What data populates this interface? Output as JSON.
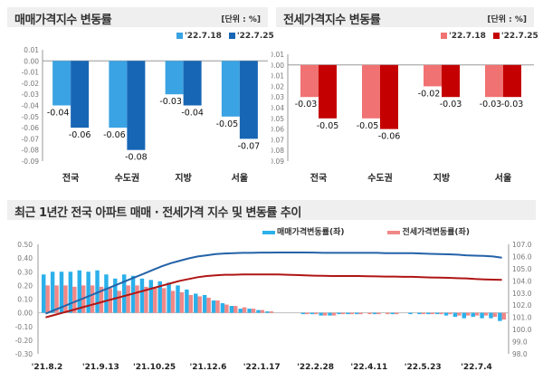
{
  "chart_data": [
    {
      "type": "bar",
      "title": "매매가격지수 변동률",
      "unit": "[단위 : %]",
      "categories": [
        "전국",
        "수도권",
        "지방",
        "서울"
      ],
      "series": [
        {
          "name": "'22.7.18",
          "values": [
            -0.04,
            -0.06,
            -0.03,
            -0.05
          ],
          "color": "#3aa3e3"
        },
        {
          "name": "'22.7.25",
          "values": [
            -0.06,
            -0.08,
            -0.04,
            -0.07
          ],
          "color": "#1766b5"
        }
      ],
      "ylim": [
        -0.09,
        0.01
      ],
      "yticks": [
        "0.01",
        "0.00",
        "-0.01",
        "-0.02",
        "-0.03",
        "-0.04",
        "-0.05",
        "-0.06",
        "-0.07",
        "-0.08",
        "-0.09"
      ],
      "legend": "top-right"
    },
    {
      "type": "bar",
      "title": "전세가격지수 변동률",
      "unit": "[단위 : %]",
      "categories": [
        "전국",
        "수도권",
        "지방",
        "서울"
      ],
      "series": [
        {
          "name": "'22.7.18",
          "values": [
            -0.03,
            -0.05,
            -0.02,
            -0.03
          ],
          "color": "#f07272"
        },
        {
          "name": "'22.7.25",
          "values": [
            -0.05,
            -0.06,
            -0.03,
            -0.03
          ],
          "color": "#c40000"
        }
      ],
      "ylim": [
        -0.09,
        0.01
      ],
      "yticks": [
        "0.01",
        "0.00",
        "-0.01",
        "-0.02",
        "-0.03",
        "-0.04",
        "-0.05",
        "-0.06",
        "-0.07",
        "-0.08",
        "-0.09"
      ],
      "legend": "top-right"
    },
    {
      "type": "bar+line",
      "title": "최근 1년간 전국 아파트 매매 · 전세가격 지수 및 변동률 추이",
      "xticks": [
        "'21.8.2",
        "'21.9.13",
        "'21.10.25",
        "'21.12.6",
        "'22.1.17",
        "'22.2.28",
        "'22.4.11",
        "'22.5.23",
        "'22.7.4"
      ],
      "ylim": [
        -0.3,
        0.5
      ],
      "yticks": [
        "0.50",
        "0.40",
        "0.30",
        "0.20",
        "0.10",
        "0.00",
        "-0.10",
        "-0.20",
        "-0.30"
      ],
      "y2lim": [
        98.0,
        107.0
      ],
      "y2ticks": [
        "107.0",
        "106.0",
        "105.0",
        "104.0",
        "103.0",
        "102.0",
        "101.0",
        "100.0",
        "99.0",
        "98.0"
      ],
      "bar_series": [
        {
          "name": "매매가격변동률(좌)",
          "color": "#2bb0ea",
          "values": [
            0.28,
            0.3,
            0.3,
            0.3,
            0.31,
            0.3,
            0.31,
            0.28,
            0.25,
            0.28,
            0.27,
            0.25,
            0.24,
            0.23,
            0.22,
            0.2,
            0.17,
            0.14,
            0.13,
            0.09,
            0.07,
            0.05,
            0.03,
            0.03,
            0.02,
            0.01,
            0.0,
            0.0,
            0.0,
            -0.01,
            -0.01,
            -0.02,
            -0.02,
            -0.01,
            -0.01,
            -0.01,
            0.0,
            -0.01,
            0.0,
            -0.01,
            0.0,
            -0.01,
            -0.01,
            -0.01,
            -0.01,
            -0.02,
            -0.03,
            -0.04,
            -0.03,
            -0.04,
            -0.04,
            -0.06
          ]
        },
        {
          "name": "전세가격변동률(좌)",
          "color": "#f08888",
          "values": [
            0.2,
            0.2,
            0.2,
            0.19,
            0.2,
            0.2,
            0.19,
            0.18,
            0.16,
            0.2,
            0.2,
            0.19,
            0.18,
            0.18,
            0.16,
            0.15,
            0.13,
            0.12,
            0.11,
            0.09,
            0.06,
            0.05,
            0.04,
            0.03,
            0.02,
            0.01,
            0.0,
            0.0,
            0.0,
            -0.01,
            -0.01,
            -0.02,
            -0.02,
            -0.01,
            -0.01,
            -0.01,
            -0.01,
            -0.01,
            -0.01,
            -0.01,
            0.0,
            0.0,
            -0.01,
            -0.01,
            -0.01,
            -0.01,
            -0.02,
            -0.02,
            -0.02,
            -0.02,
            -0.03,
            -0.05
          ]
        }
      ],
      "line_series": [
        {
          "color": "#2462a8",
          "values": [
            101.3,
            101.6,
            101.9,
            102.2,
            102.5,
            102.8,
            103.1,
            103.4,
            103.7,
            104.0,
            104.3,
            104.6,
            104.9,
            105.2,
            105.45,
            105.65,
            105.85,
            106.0,
            106.1,
            106.2,
            106.25,
            106.28,
            106.3,
            106.3,
            106.32,
            106.32,
            106.33,
            106.33,
            106.33,
            106.33,
            106.32,
            106.3,
            106.3,
            106.3,
            106.3,
            106.3,
            106.3,
            106.3,
            106.28,
            106.28,
            106.28,
            106.27,
            106.25,
            106.22,
            106.2,
            106.18,
            106.15,
            106.1,
            106.07,
            106.05,
            106.0,
            105.9
          ]
        },
        {
          "color": "#b01515",
          "values": [
            101.0,
            101.2,
            101.4,
            101.6,
            101.8,
            102.0,
            102.2,
            102.4,
            102.6,
            102.8,
            103.0,
            103.2,
            103.4,
            103.6,
            103.8,
            104.0,
            104.15,
            104.3,
            104.4,
            104.45,
            104.5,
            104.5,
            104.52,
            104.53,
            104.53,
            104.53,
            104.53,
            104.5,
            104.48,
            104.45,
            104.43,
            104.42,
            104.4,
            104.4,
            104.4,
            104.4,
            104.38,
            104.37,
            104.35,
            104.35,
            104.33,
            104.33,
            104.3,
            104.28,
            104.27,
            104.25,
            104.22,
            104.2,
            104.15,
            104.12,
            104.1,
            104.08
          ]
        }
      ],
      "legend": "top-right"
    }
  ]
}
